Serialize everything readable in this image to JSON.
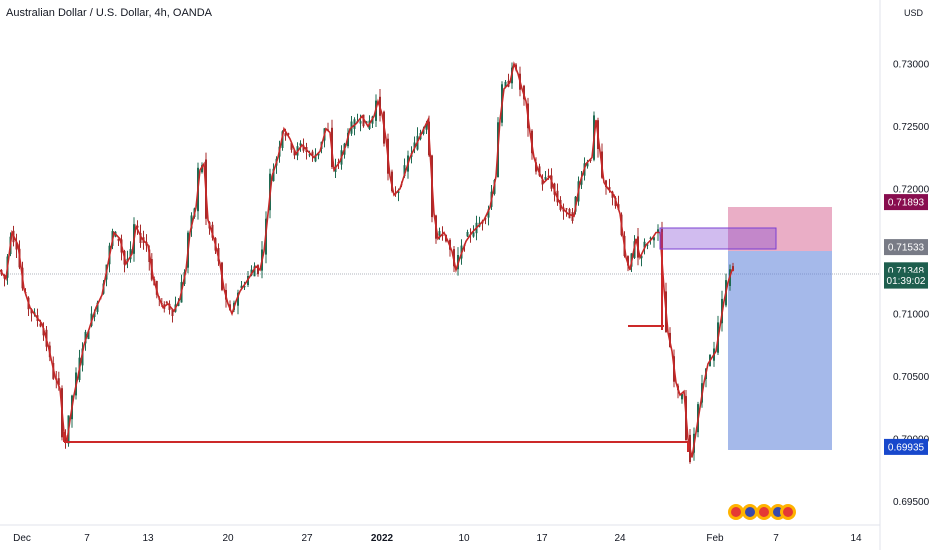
{
  "header": {
    "title": "Australian Dollar / U.S. Dollar, 4h, OANDA",
    "currency": "USD"
  },
  "chart_data": {
    "type": "candlestick",
    "symbol": "AUDUSD",
    "timeframe": "4h",
    "x_ticks": [
      "Dec",
      "7",
      "13",
      "20",
      "27",
      "2022",
      "10",
      "17",
      "24",
      "Feb",
      "7",
      "14"
    ],
    "y_ticks": [
      "0.73000",
      "0.72500",
      "0.72000",
      "0.71000",
      "0.70500",
      "0.70000",
      "0.69500"
    ],
    "ylim": [
      0.6935,
      0.7335
    ],
    "grid": false,
    "price_tags": [
      {
        "label": "0.71893",
        "value": 0.71893,
        "color": "#880e4f"
      },
      {
        "label": "0.71533",
        "value": 0.71533,
        "color": "#787b86"
      },
      {
        "label": "0.71348",
        "value": 0.71348,
        "color": "#1e5e4e"
      },
      {
        "label": "01:39:02",
        "value": 0.71265,
        "color": "#1e5e4e"
      },
      {
        "label": "0.69935",
        "value": 0.69935,
        "color": "#1848cc"
      }
    ],
    "close_path": [
      [
        0,
        0.7135
      ],
      [
        6,
        0.7128
      ],
      [
        12,
        0.7165
      ],
      [
        18,
        0.7155
      ],
      [
        24,
        0.712
      ],
      [
        30,
        0.7105
      ],
      [
        36,
        0.7098
      ],
      [
        42,
        0.7092
      ],
      [
        48,
        0.7075
      ],
      [
        55,
        0.705
      ],
      [
        60,
        0.704
      ],
      [
        64,
        0.7005
      ],
      [
        67,
        0.6998
      ],
      [
        70,
        0.7015
      ],
      [
        74,
        0.7035
      ],
      [
        78,
        0.705
      ],
      [
        84,
        0.7075
      ],
      [
        90,
        0.709
      ],
      [
        96,
        0.7105
      ],
      [
        102,
        0.7115
      ],
      [
        108,
        0.714
      ],
      [
        114,
        0.7165
      ],
      [
        120,
        0.716
      ],
      [
        126,
        0.714
      ],
      [
        132,
        0.7148
      ],
      [
        136,
        0.717
      ],
      [
        142,
        0.716
      ],
      [
        148,
        0.7155
      ],
      [
        153,
        0.713
      ],
      [
        158,
        0.7115
      ],
      [
        163,
        0.7105
      ],
      [
        168,
        0.7108
      ],
      [
        174,
        0.7102
      ],
      [
        180,
        0.7112
      ],
      [
        186,
        0.7135
      ],
      [
        190,
        0.7165
      ],
      [
        196,
        0.7185
      ],
      [
        200,
        0.7215
      ],
      [
        204,
        0.722
      ],
      [
        208,
        0.7175
      ],
      [
        214,
        0.716
      ],
      [
        220,
        0.714
      ],
      [
        224,
        0.712
      ],
      [
        228,
        0.7108
      ],
      [
        232,
        0.71
      ],
      [
        236,
        0.711
      ],
      [
        240,
        0.7118
      ],
      [
        246,
        0.7125
      ],
      [
        250,
        0.713
      ],
      [
        256,
        0.7138
      ],
      [
        260,
        0.7135
      ],
      [
        264,
        0.715
      ],
      [
        268,
        0.718
      ],
      [
        272,
        0.721
      ],
      [
        278,
        0.7225
      ],
      [
        284,
        0.7248
      ],
      [
        290,
        0.724
      ],
      [
        296,
        0.7228
      ],
      [
        302,
        0.7235
      ],
      [
        308,
        0.723
      ],
      [
        314,
        0.7225
      ],
      [
        320,
        0.723
      ],
      [
        326,
        0.7248
      ],
      [
        330,
        0.7245
      ],
      [
        334,
        0.7215
      ],
      [
        340,
        0.7222
      ],
      [
        346,
        0.7235
      ],
      [
        350,
        0.7248
      ],
      [
        356,
        0.7252
      ],
      [
        362,
        0.7258
      ],
      [
        368,
        0.725
      ],
      [
        374,
        0.7258
      ],
      [
        378,
        0.727
      ],
      [
        382,
        0.726
      ],
      [
        386,
        0.724
      ],
      [
        390,
        0.721
      ],
      [
        394,
        0.7195
      ],
      [
        400,
        0.72
      ],
      [
        406,
        0.7215
      ],
      [
        410,
        0.7225
      ],
      [
        416,
        0.7235
      ],
      [
        422,
        0.7245
      ],
      [
        428,
        0.7255
      ],
      [
        430,
        0.723
      ],
      [
        434,
        0.718
      ],
      [
        438,
        0.716
      ],
      [
        444,
        0.7165
      ],
      [
        448,
        0.7158
      ],
      [
        452,
        0.715
      ],
      [
        456,
        0.7135
      ],
      [
        460,
        0.7145
      ],
      [
        466,
        0.7158
      ],
      [
        472,
        0.7165
      ],
      [
        478,
        0.717
      ],
      [
        484,
        0.7175
      ],
      [
        490,
        0.7185
      ],
      [
        496,
        0.721
      ],
      [
        500,
        0.7255
      ],
      [
        504,
        0.728
      ],
      [
        510,
        0.7285
      ],
      [
        514,
        0.73
      ],
      [
        518,
        0.7292
      ],
      [
        522,
        0.728
      ],
      [
        526,
        0.727
      ],
      [
        530,
        0.7245
      ],
      [
        534,
        0.7225
      ],
      [
        538,
        0.7215
      ],
      [
        544,
        0.7205
      ],
      [
        550,
        0.721
      ],
      [
        556,
        0.7195
      ],
      [
        562,
        0.7185
      ],
      [
        568,
        0.718
      ],
      [
        574,
        0.7178
      ],
      [
        580,
        0.7205
      ],
      [
        586,
        0.722
      ],
      [
        592,
        0.7225
      ],
      [
        596,
        0.7255
      ],
      [
        600,
        0.723
      ],
      [
        604,
        0.7205
      ],
      [
        608,
        0.72
      ],
      [
        614,
        0.7195
      ],
      [
        620,
        0.718
      ],
      [
        626,
        0.7145
      ],
      [
        630,
        0.7135
      ],
      [
        636,
        0.716
      ],
      [
        640,
        0.7145
      ],
      [
        646,
        0.7155
      ],
      [
        652,
        0.716
      ],
      [
        656,
        0.7165
      ],
      [
        660,
        0.7165
      ],
      [
        664,
        0.712
      ],
      [
        668,
        0.7085
      ],
      [
        672,
        0.707
      ],
      [
        676,
        0.7045
      ],
      [
        680,
        0.7035
      ],
      [
        684,
        0.7038
      ],
      [
        688,
        0.7
      ],
      [
        692,
        0.6985
      ],
      [
        696,
        0.7005
      ],
      [
        700,
        0.7025
      ],
      [
        704,
        0.7045
      ],
      [
        708,
        0.706
      ],
      [
        712,
        0.7065
      ],
      [
        716,
        0.707
      ],
      [
        720,
        0.709
      ],
      [
        724,
        0.711
      ],
      [
        728,
        0.7125
      ],
      [
        732,
        0.7135
      ],
      [
        734,
        0.71348
      ]
    ],
    "annotations": [
      {
        "type": "horizontal-line",
        "color": "#cc2929",
        "from_x": "7",
        "to_x": "Feb",
        "value": 0.69935
      },
      {
        "type": "horizontal-line",
        "color": "#cc2929",
        "value": 0.7093
      },
      {
        "type": "vertical-line",
        "color": "#cc2929"
      },
      {
        "type": "rectangle",
        "color": "#7b3fd1",
        "top": 0.7175,
        "bottom": 0.7155
      },
      {
        "type": "long-position",
        "entry": 0.71533,
        "stop": 0.71893,
        "target": 0.69935
      }
    ]
  }
}
